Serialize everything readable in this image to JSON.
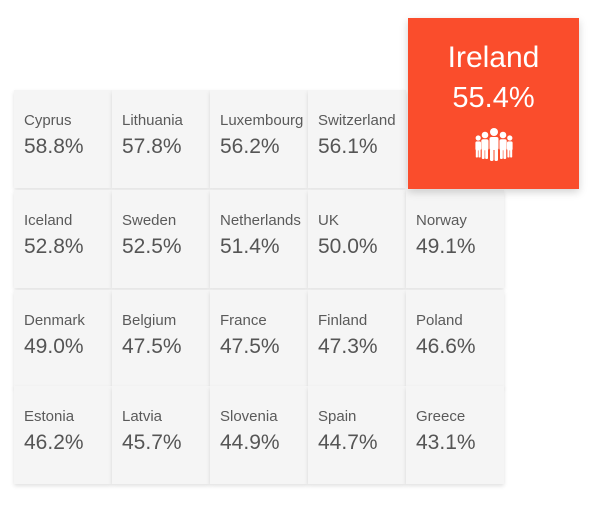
{
  "highlight": {
    "country": "Ireland",
    "value": "55.4%",
    "icon": "people-group-icon",
    "color": "#fa4d2c"
  },
  "tiles": [
    {
      "country": "Cyprus",
      "value": "58.8%"
    },
    {
      "country": "Lithuania",
      "value": "57.8%"
    },
    {
      "country": "Luxembourg",
      "value": "56.2%"
    },
    {
      "country": "Switzerland",
      "value": "56.1%"
    },
    {
      "country": "Iceland",
      "value": "52.8%"
    },
    {
      "country": "Sweden",
      "value": "52.5%"
    },
    {
      "country": "Netherlands",
      "value": "51.4%"
    },
    {
      "country": "UK",
      "value": "50.0%"
    },
    {
      "country": "Norway",
      "value": "49.1%"
    },
    {
      "country": "Denmark",
      "value": "49.0%"
    },
    {
      "country": "Belgium",
      "value": "47.5%"
    },
    {
      "country": "France",
      "value": "47.5%"
    },
    {
      "country": "Finland",
      "value": "47.3%"
    },
    {
      "country": "Poland",
      "value": "46.6%"
    },
    {
      "country": "Estonia",
      "value": "46.2%"
    },
    {
      "country": "Latvia",
      "value": "45.7%"
    },
    {
      "country": "Slovenia",
      "value": "44.9%"
    },
    {
      "country": "Spain",
      "value": "44.7%"
    },
    {
      "country": "Greece",
      "value": "43.1%"
    }
  ]
}
